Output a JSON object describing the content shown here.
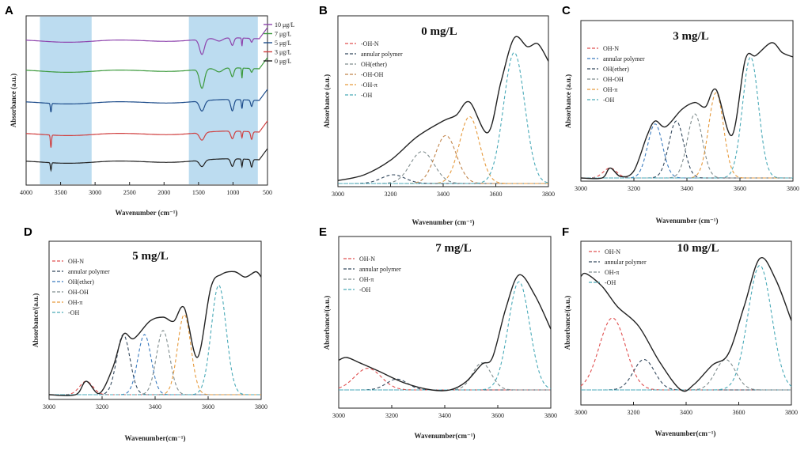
{
  "chart_data": [
    {
      "id": "A",
      "panel_label": "A",
      "type": "line",
      "xlabel": "Wavenumber (cm⁻¹)",
      "ylabel": "Absorbance (a.u.)",
      "xlim": [
        4000,
        500
      ],
      "xreversed": true,
      "xticks": [
        "4000",
        "3500",
        "3000",
        "2500",
        "2000",
        "1500",
        "1000",
        "500"
      ],
      "xtick_values": [
        4000,
        3500,
        3000,
        2500,
        2000,
        1500,
        1000,
        500
      ],
      "shaded_regions": [
        [
          3800,
          3050
        ],
        [
          1640,
          640
        ]
      ],
      "shade_color": "#bcdcf0",
      "series": [
        {
          "name": "10 μg/L",
          "color": "#8e44ad",
          "offset": 4,
          "peaks": [
            [
              1450,
              0.6,
              35
            ],
            [
              1200,
              0.12,
              50
            ],
            [
              1010,
              0.3,
              22
            ],
            [
              870,
              0.32,
              6
            ],
            [
              730,
              0.15,
              14
            ]
          ]
        },
        {
          "name": "7 μg/L",
          "color": "#3d9a3d",
          "offset": 3,
          "peaks": [
            [
              1450,
              0.75,
              35
            ],
            [
              1200,
              0.15,
              50
            ],
            [
              1010,
              0.35,
              22
            ],
            [
              870,
              0.4,
              6
            ],
            [
              730,
              0.15,
              14
            ]
          ]
        },
        {
          "name": "5 μg/L",
          "color": "#1f4e8c",
          "offset": 2,
          "peaks": [
            [
              3640,
              0.35,
              8
            ],
            [
              1450,
              0.4,
              35
            ],
            [
              1010,
              0.45,
              22
            ],
            [
              870,
              0.35,
              8
            ],
            [
              730,
              0.25,
              14
            ]
          ]
        },
        {
          "name": "3 μg/L",
          "color": "#d04040",
          "offset": 1,
          "peaks": [
            [
              3640,
              0.5,
              8
            ],
            [
              1450,
              0.3,
              35
            ],
            [
              1010,
              0.3,
              22
            ],
            [
              870,
              0.25,
              8
            ],
            [
              730,
              0.3,
              14
            ]
          ]
        },
        {
          "name": "0 μg/L",
          "color": "#222222",
          "offset": 0,
          "peaks": [
            [
              3640,
              0.3,
              8
            ],
            [
              1450,
              0.25,
              35
            ],
            [
              1010,
              0.3,
              22
            ],
            [
              870,
              0.3,
              8
            ],
            [
              730,
              0.3,
              14
            ]
          ]
        }
      ]
    },
    {
      "id": "B",
      "panel_label": "B",
      "type": "line",
      "title": "0 mg/L",
      "xlabel": "Wavenumber (cm⁻¹)",
      "ylabel": "Absorbance (a.u.)",
      "xlim": [
        3000,
        3800
      ],
      "ylim": [
        0,
        1.05
      ],
      "xticks": [
        "3000",
        "3200",
        "3400",
        "3600",
        "3800"
      ],
      "xtick_values": [
        3000,
        3200,
        3400,
        3600,
        3800
      ],
      "legend": [
        "-OH-N",
        "annular polymer",
        "OH(ether)",
        "-OH-OH",
        "-OH-π",
        "-OH"
      ],
      "components": [
        {
          "name": "-OH-N",
          "color": "#e05050",
          "center": 3100,
          "height": 0.0,
          "width": 60
        },
        {
          "name": "annular polymer",
          "color": "#34495e",
          "center": 3210,
          "height": 0.06,
          "width": 45
        },
        {
          "name": "OH(ether)",
          "color": "#7f8c8d",
          "center": 3320,
          "height": 0.22,
          "width": 45
        },
        {
          "name": "-OH-OH",
          "color": "#c0844a",
          "center": 3410,
          "height": 0.33,
          "width": 40
        },
        {
          "name": "-OH-π",
          "color": "#e69a3c",
          "center": 3500,
          "height": 0.46,
          "width": 38
        },
        {
          "name": "-OH",
          "color": "#4aaab8",
          "center": 3670,
          "height": 0.9,
          "width": 40
        }
      ],
      "envelope": [
        [
          3000,
          0.02
        ],
        [
          3100,
          0.06
        ],
        [
          3200,
          0.16
        ],
        [
          3300,
          0.32
        ],
        [
          3400,
          0.43
        ],
        [
          3450,
          0.47
        ],
        [
          3500,
          0.56
        ],
        [
          3570,
          0.35
        ],
        [
          3620,
          0.7
        ],
        [
          3670,
          1.0
        ],
        [
          3720,
          0.94
        ],
        [
          3760,
          0.96
        ],
        [
          3800,
          0.84
        ]
      ]
    },
    {
      "id": "C",
      "panel_label": "C",
      "type": "line",
      "title": "3 mg/L",
      "xlabel": "Wavenumber (cm⁻¹)",
      "ylabel": "Absorbance (a.u.)",
      "xlim": [
        3000,
        3800
      ],
      "ylim": [
        0,
        1.05
      ],
      "xticks": [
        "3000",
        "3200",
        "3400",
        "3600",
        "3800"
      ],
      "xtick_values": [
        3000,
        3200,
        3400,
        3600,
        3800
      ],
      "legend": [
        "OH-N",
        "annular polymer",
        "OH(ether)",
        "OH-OH",
        "OH-π",
        "-OH"
      ],
      "components": [
        {
          "name": "OH-N",
          "color": "#e05050",
          "center": 3110,
          "height": 0.07,
          "width": 25
        },
        {
          "name": "annular polymer",
          "color": "#3a7bbf",
          "center": 3280,
          "height": 0.38,
          "width": 28
        },
        {
          "name": "OH(ether)",
          "color": "#34495e",
          "center": 3360,
          "height": 0.4,
          "width": 28
        },
        {
          "name": "OH-OH",
          "color": "#7f8c8d",
          "center": 3430,
          "height": 0.45,
          "width": 28
        },
        {
          "name": "OH-π",
          "color": "#e69a3c",
          "center": 3510,
          "height": 0.6,
          "width": 28
        },
        {
          "name": "-OH",
          "color": "#4aaab8",
          "center": 3640,
          "height": 0.85,
          "width": 30
        }
      ],
      "envelope": [
        [
          3000,
          0.0
        ],
        [
          3080,
          0.0
        ],
        [
          3110,
          0.07
        ],
        [
          3150,
          0.01
        ],
        [
          3200,
          0.05
        ],
        [
          3250,
          0.3
        ],
        [
          3280,
          0.4
        ],
        [
          3320,
          0.36
        ],
        [
          3380,
          0.48
        ],
        [
          3430,
          0.53
        ],
        [
          3470,
          0.5
        ],
        [
          3510,
          0.62
        ],
        [
          3570,
          0.3
        ],
        [
          3620,
          0.83
        ],
        [
          3660,
          0.86
        ],
        [
          3720,
          0.95
        ],
        [
          3760,
          0.88
        ],
        [
          3800,
          0.85
        ]
      ]
    },
    {
      "id": "D",
      "panel_label": "D",
      "type": "line",
      "title": "5 mg/L",
      "xlabel": "Wavenumber(cm⁻¹)",
      "ylabel": "Absorbance/(a.u.)",
      "xlim": [
        3000,
        3800
      ],
      "ylim": [
        0,
        1.05
      ],
      "xticks": [
        "3000",
        "3200",
        "3400",
        "3600",
        "3800"
      ],
      "xtick_values": [
        3000,
        3200,
        3400,
        3600,
        3800
      ],
      "legend": [
        "OH-N",
        "annular polymer",
        "OH(ether)",
        "OH-OH",
        "OH-π",
        "-OH"
      ],
      "components": [
        {
          "name": "OH-N",
          "color": "#e05050",
          "center": 3140,
          "height": 0.1,
          "width": 25
        },
        {
          "name": "annular polymer",
          "color": "#34495e",
          "center": 3280,
          "height": 0.45,
          "width": 25
        },
        {
          "name": "OH(ether)",
          "color": "#3a7bbf",
          "center": 3360,
          "height": 0.45,
          "width": 25
        },
        {
          "name": "OH-OH",
          "color": "#7f8c8d",
          "center": 3430,
          "height": 0.48,
          "width": 25
        },
        {
          "name": "OH-π",
          "color": "#e69a3c",
          "center": 3510,
          "height": 0.6,
          "width": 25
        },
        {
          "name": "-OH",
          "color": "#4aaab8",
          "center": 3640,
          "height": 0.82,
          "width": 28
        }
      ],
      "envelope": [
        [
          3000,
          0.0
        ],
        [
          3100,
          0.0
        ],
        [
          3140,
          0.1
        ],
        [
          3190,
          0.01
        ],
        [
          3240,
          0.2
        ],
        [
          3280,
          0.45
        ],
        [
          3320,
          0.42
        ],
        [
          3380,
          0.55
        ],
        [
          3430,
          0.58
        ],
        [
          3470,
          0.55
        ],
        [
          3510,
          0.65
        ],
        [
          3560,
          0.28
        ],
        [
          3610,
          0.8
        ],
        [
          3650,
          0.9
        ],
        [
          3700,
          0.92
        ],
        [
          3740,
          0.88
        ],
        [
          3780,
          0.92
        ],
        [
          3800,
          0.88
        ]
      ]
    },
    {
      "id": "E",
      "panel_label": "E",
      "type": "line",
      "title": "7 mg/L",
      "xlabel": "Wavenumber(cm⁻¹)",
      "ylabel": "Absorbance/(a.u.)",
      "xlim": [
        3000,
        3800
      ],
      "ylim": [
        0,
        1.05
      ],
      "xticks": [
        "3000",
        "3200",
        "3400",
        "3600",
        "3800"
      ],
      "xtick_values": [
        3000,
        3200,
        3400,
        3600,
        3800
      ],
      "legend": [
        "OH-N",
        "annular polymer",
        "OH-π",
        "-OH"
      ],
      "components": [
        {
          "name": "OH-N",
          "color": "#e05050",
          "center": 3110,
          "height": 0.16,
          "width": 50
        },
        {
          "name": "annular polymer",
          "color": "#34495e",
          "center": 3220,
          "height": 0.08,
          "width": 40
        },
        {
          "name": "OH-π",
          "color": "#7f8c8d",
          "center": 3540,
          "height": 0.2,
          "width": 35
        },
        {
          "name": "-OH",
          "color": "#4aaab8",
          "center": 3680,
          "height": 0.8,
          "width": 40
        }
      ],
      "envelope": [
        [
          3000,
          0.22
        ],
        [
          3030,
          0.24
        ],
        [
          3080,
          0.2
        ],
        [
          3150,
          0.14
        ],
        [
          3250,
          0.05
        ],
        [
          3350,
          0.0
        ],
        [
          3420,
          0.0
        ],
        [
          3480,
          0.06
        ],
        [
          3540,
          0.19
        ],
        [
          3580,
          0.24
        ],
        [
          3630,
          0.6
        ],
        [
          3680,
          0.85
        ],
        [
          3740,
          0.7
        ],
        [
          3800,
          0.45
        ]
      ]
    },
    {
      "id": "F",
      "panel_label": "F",
      "type": "line",
      "title": "10 mg/L",
      "xlabel": "Wavenumber(cm⁻¹)",
      "ylabel": "Absorbance/(a.u.)",
      "xlim": [
        3000,
        3800
      ],
      "ylim": [
        0,
        1.05
      ],
      "xticks": [
        "3000",
        "3200",
        "3400",
        "3600",
        "3800"
      ],
      "xtick_values": [
        3000,
        3200,
        3400,
        3600,
        3800
      ],
      "legend": [
        "OH-N",
        "annular polymer",
        "OH-π",
        "-OH"
      ],
      "components": [
        {
          "name": "OH-N",
          "color": "#e05050",
          "center": 3120,
          "height": 0.52,
          "width": 50
        },
        {
          "name": "annular polymer",
          "color": "#34495e",
          "center": 3240,
          "height": 0.22,
          "width": 40
        },
        {
          "name": "OH-π",
          "color": "#7f8c8d",
          "center": 3550,
          "height": 0.22,
          "width": 38
        },
        {
          "name": "-OH",
          "color": "#4aaab8",
          "center": 3680,
          "height": 0.9,
          "width": 45
        }
      ],
      "envelope": [
        [
          3000,
          0.82
        ],
        [
          3020,
          0.84
        ],
        [
          3080,
          0.75
        ],
        [
          3140,
          0.6
        ],
        [
          3220,
          0.46
        ],
        [
          3300,
          0.2
        ],
        [
          3380,
          0.0
        ],
        [
          3430,
          0.04
        ],
        [
          3500,
          0.18
        ],
        [
          3560,
          0.26
        ],
        [
          3620,
          0.6
        ],
        [
          3680,
          0.95
        ],
        [
          3740,
          0.8
        ],
        [
          3800,
          0.5
        ]
      ]
    }
  ]
}
